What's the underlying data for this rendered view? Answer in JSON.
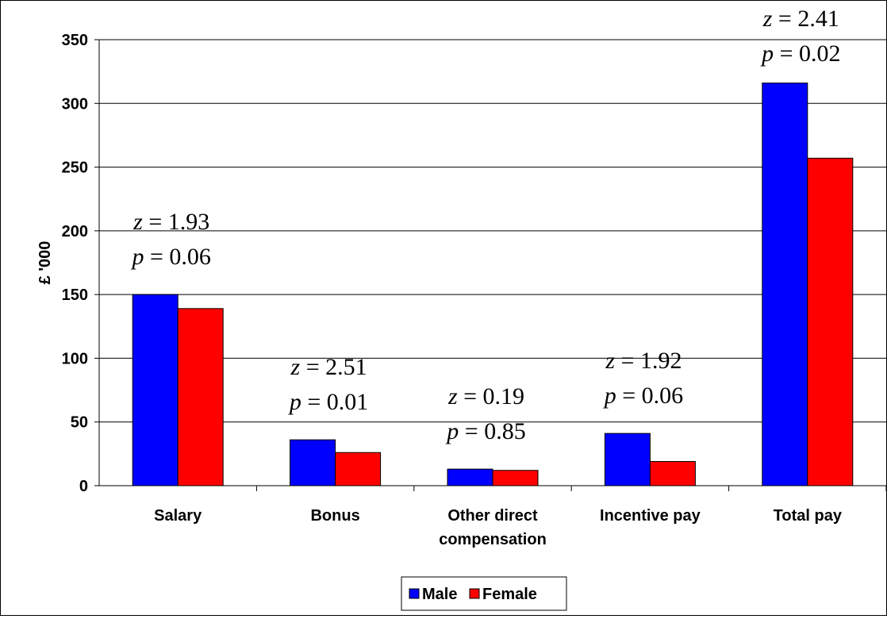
{
  "chart_data": {
    "type": "bar",
    "ylabel": "£ '000",
    "ylim": [
      0,
      350
    ],
    "yticks": [
      0,
      50,
      100,
      150,
      200,
      250,
      300,
      350
    ],
    "grid": true,
    "legend_position": "bottom",
    "categories": [
      [
        "Salary"
      ],
      [
        "Bonus"
      ],
      [
        "Other direct",
        "compensation"
      ],
      [
        "Incentive pay"
      ],
      [
        "Total pay"
      ]
    ],
    "series": [
      {
        "name": "Male",
        "color": "#0000ff",
        "values": [
          150,
          36,
          13,
          41,
          316
        ]
      },
      {
        "name": "Female",
        "color": "#ff0000",
        "values": [
          139,
          26,
          12,
          19,
          257
        ]
      }
    ],
    "annotations": [
      {
        "z": "1.93",
        "p": "0.06"
      },
      {
        "z": "2.51",
        "p": "0.01"
      },
      {
        "z": "0.19",
        "p": "0.85"
      },
      {
        "z": "1.92",
        "p": "0.06"
      },
      {
        "z": "2.41",
        "p": "0.02"
      }
    ]
  }
}
